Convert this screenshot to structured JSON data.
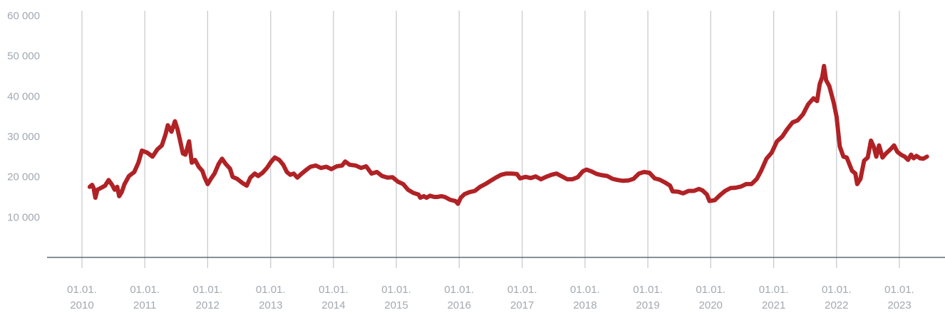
{
  "chart_data": {
    "type": "line",
    "title": "",
    "xlabel": "",
    "ylabel": "",
    "ylim": [
      0,
      60000
    ],
    "xlim": [
      "2009-12-01",
      "2023-08-01"
    ],
    "grid": "vertical",
    "legend": "none",
    "y_ticks": [
      {
        "value": 10000,
        "label": "10 000"
      },
      {
        "value": 20000,
        "label": "20 000"
      },
      {
        "value": 30000,
        "label": "30 000"
      },
      {
        "value": 40000,
        "label": "40 000"
      },
      {
        "value": 50000,
        "label": "50 000"
      },
      {
        "value": 60000,
        "label": "60 000"
      }
    ],
    "x_ticks": [
      {
        "date": "2010-01-01",
        "line1": "01.01.",
        "line2": "2010"
      },
      {
        "date": "2011-01-01",
        "line1": "01.01.",
        "line2": "2011"
      },
      {
        "date": "2012-01-01",
        "line1": "01.01.",
        "line2": "2012"
      },
      {
        "date": "2013-01-01",
        "line1": "01.01.",
        "line2": "2013"
      },
      {
        "date": "2014-01-01",
        "line1": "01.01.",
        "line2": "2014"
      },
      {
        "date": "2015-01-01",
        "line1": "01.01.",
        "line2": "2015"
      },
      {
        "date": "2016-01-01",
        "line1": "01.01.",
        "line2": "2016"
      },
      {
        "date": "2017-01-01",
        "line1": "01.01.",
        "line2": "2017"
      },
      {
        "date": "2018-01-01",
        "line1": "01.01.",
        "line2": "2018"
      },
      {
        "date": "2019-01-01",
        "line1": "01.01.",
        "line2": "2019"
      },
      {
        "date": "2020-01-01",
        "line1": "01.01.",
        "line2": "2020"
      },
      {
        "date": "2021-01-01",
        "line1": "01.01.",
        "line2": "2021"
      },
      {
        "date": "2022-01-01",
        "line1": "01.01.",
        "line2": "2022"
      },
      {
        "date": "2023-01-01",
        "line1": "01.01.",
        "line2": "2023"
      }
    ],
    "colors": {
      "line": "#b02225",
      "grid": "#c4c8cc",
      "axis": "#5f6b75",
      "ticks": "#a2a9b0"
    },
    "series": [
      {
        "color": "#b02225",
        "points": [
          [
            "2010-02-15",
            17500
          ],
          [
            "2010-03-01",
            18000
          ],
          [
            "2010-03-10",
            17200
          ],
          [
            "2010-03-20",
            14800
          ],
          [
            "2010-04-01",
            16800
          ],
          [
            "2010-04-20",
            17200
          ],
          [
            "2010-05-15",
            17800
          ],
          [
            "2010-06-05",
            19200
          ],
          [
            "2010-06-25",
            18000
          ],
          [
            "2010-07-10",
            16800
          ],
          [
            "2010-07-25",
            17500
          ],
          [
            "2010-08-05",
            15200
          ],
          [
            "2010-08-20",
            16200
          ],
          [
            "2010-09-05",
            18200
          ],
          [
            "2010-10-01",
            20200
          ],
          [
            "2010-11-01",
            21200
          ],
          [
            "2010-11-25",
            23500
          ],
          [
            "2010-12-15",
            26500
          ],
          [
            "2011-01-15",
            26000
          ],
          [
            "2011-02-15",
            25000
          ],
          [
            "2011-03-15",
            26800
          ],
          [
            "2011-04-10",
            27800
          ],
          [
            "2011-05-01",
            30500
          ],
          [
            "2011-05-15",
            32800
          ],
          [
            "2011-06-05",
            31200
          ],
          [
            "2011-06-25",
            33800
          ],
          [
            "2011-07-10",
            31800
          ],
          [
            "2011-07-25",
            29000
          ],
          [
            "2011-08-10",
            25800
          ],
          [
            "2011-08-25",
            25500
          ],
          [
            "2011-09-15",
            28800
          ],
          [
            "2011-10-01",
            23500
          ],
          [
            "2011-10-20",
            24200
          ],
          [
            "2011-11-10",
            22500
          ],
          [
            "2011-12-01",
            21500
          ],
          [
            "2011-12-15",
            19800
          ],
          [
            "2012-01-01",
            18200
          ],
          [
            "2012-01-20",
            19500
          ],
          [
            "2012-02-10",
            20800
          ],
          [
            "2012-03-05",
            23200
          ],
          [
            "2012-03-25",
            24500
          ],
          [
            "2012-04-15",
            23200
          ],
          [
            "2012-05-10",
            22000
          ],
          [
            "2012-05-25",
            20000
          ],
          [
            "2012-06-20",
            19500
          ],
          [
            "2012-07-20",
            18500
          ],
          [
            "2012-08-15",
            17800
          ],
          [
            "2012-09-05",
            19800
          ],
          [
            "2012-10-01",
            20800
          ],
          [
            "2012-10-20",
            20200
          ],
          [
            "2012-11-15",
            21000
          ],
          [
            "2012-12-10",
            22200
          ],
          [
            "2013-01-05",
            23800
          ],
          [
            "2013-01-25",
            24800
          ],
          [
            "2013-02-20",
            24200
          ],
          [
            "2013-03-15",
            23000
          ],
          [
            "2013-04-05",
            21200
          ],
          [
            "2013-04-25",
            20500
          ],
          [
            "2013-05-15",
            20800
          ],
          [
            "2013-06-05",
            19800
          ],
          [
            "2013-06-25",
            20600
          ],
          [
            "2013-07-20",
            21500
          ],
          [
            "2013-08-20",
            22500
          ],
          [
            "2013-09-20",
            22800
          ],
          [
            "2013-10-20",
            22200
          ],
          [
            "2013-11-20",
            22500
          ],
          [
            "2013-12-20",
            21900
          ],
          [
            "2014-01-20",
            22600
          ],
          [
            "2014-02-20",
            22800
          ],
          [
            "2014-03-10",
            23800
          ],
          [
            "2014-04-05",
            23000
          ],
          [
            "2014-05-10",
            22800
          ],
          [
            "2014-06-10",
            22200
          ],
          [
            "2014-07-10",
            22600
          ],
          [
            "2014-08-10",
            20800
          ],
          [
            "2014-09-10",
            21200
          ],
          [
            "2014-10-10",
            20200
          ],
          [
            "2014-11-10",
            19800
          ],
          [
            "2014-12-10",
            19900
          ],
          [
            "2015-01-10",
            18800
          ],
          [
            "2015-02-10",
            18200
          ],
          [
            "2015-03-10",
            16800
          ],
          [
            "2015-04-10",
            16000
          ],
          [
            "2015-05-10",
            15600
          ],
          [
            "2015-05-20",
            14800
          ],
          [
            "2015-06-10",
            15200
          ],
          [
            "2015-06-25",
            14800
          ],
          [
            "2015-07-15",
            15300
          ],
          [
            "2015-08-10",
            15000
          ],
          [
            "2015-08-25",
            15000
          ],
          [
            "2015-09-20",
            15200
          ],
          [
            "2015-10-10",
            15000
          ],
          [
            "2015-11-10",
            14300
          ],
          [
            "2015-12-10",
            14000
          ],
          [
            "2015-12-25",
            13300
          ],
          [
            "2016-01-10",
            14800
          ],
          [
            "2016-02-01",
            15700
          ],
          [
            "2016-03-01",
            16200
          ],
          [
            "2016-04-01",
            16500
          ],
          [
            "2016-05-01",
            17500
          ],
          [
            "2016-06-01",
            18200
          ],
          [
            "2016-07-01",
            19000
          ],
          [
            "2016-08-01",
            19800
          ],
          [
            "2016-09-01",
            20500
          ],
          [
            "2016-10-01",
            20800
          ],
          [
            "2016-11-01",
            20800
          ],
          [
            "2016-12-01",
            20700
          ],
          [
            "2016-12-20",
            19600
          ],
          [
            "2017-01-20",
            20000
          ],
          [
            "2017-02-20",
            19700
          ],
          [
            "2017-03-20",
            20100
          ],
          [
            "2017-04-20",
            19400
          ],
          [
            "2017-05-20",
            20000
          ],
          [
            "2017-06-20",
            20500
          ],
          [
            "2017-07-20",
            20800
          ],
          [
            "2017-08-20",
            20100
          ],
          [
            "2017-09-20",
            19400
          ],
          [
            "2017-10-20",
            19400
          ],
          [
            "2017-11-20",
            19900
          ],
          [
            "2017-12-20",
            21400
          ],
          [
            "2018-01-10",
            21800
          ],
          [
            "2018-02-10",
            21300
          ],
          [
            "2018-03-10",
            20700
          ],
          [
            "2018-04-10",
            20400
          ],
          [
            "2018-05-10",
            20200
          ],
          [
            "2018-06-10",
            19500
          ],
          [
            "2018-07-10",
            19200
          ],
          [
            "2018-08-10",
            19000
          ],
          [
            "2018-09-10",
            19100
          ],
          [
            "2018-10-10",
            19500
          ],
          [
            "2018-11-10",
            20800
          ],
          [
            "2018-12-10",
            21200
          ],
          [
            "2019-01-10",
            21000
          ],
          [
            "2019-02-10",
            19600
          ],
          [
            "2019-03-10",
            19300
          ],
          [
            "2019-04-10",
            18600
          ],
          [
            "2019-05-10",
            17800
          ],
          [
            "2019-05-25",
            16400
          ],
          [
            "2019-06-25",
            16300
          ],
          [
            "2019-07-25",
            15900
          ],
          [
            "2019-08-25",
            16500
          ],
          [
            "2019-09-25",
            16500
          ],
          [
            "2019-10-25",
            17000
          ],
          [
            "2019-11-15",
            16600
          ],
          [
            "2019-12-10",
            15600
          ],
          [
            "2019-12-25",
            14000
          ],
          [
            "2020-01-25",
            14200
          ],
          [
            "2020-02-25",
            15500
          ],
          [
            "2020-03-25",
            16500
          ],
          [
            "2020-04-25",
            17200
          ],
          [
            "2020-05-25",
            17300
          ],
          [
            "2020-06-25",
            17600
          ],
          [
            "2020-07-25",
            18200
          ],
          [
            "2020-08-25",
            18200
          ],
          [
            "2020-09-25",
            19500
          ],
          [
            "2020-10-20",
            21500
          ],
          [
            "2020-11-20",
            24500
          ],
          [
            "2020-12-20",
            26000
          ],
          [
            "2021-01-20",
            28800
          ],
          [
            "2021-02-20",
            30000
          ],
          [
            "2021-03-20",
            31800
          ],
          [
            "2021-04-20",
            33500
          ],
          [
            "2021-05-20",
            34000
          ],
          [
            "2021-06-20",
            35500
          ],
          [
            "2021-07-20",
            38000
          ],
          [
            "2021-08-20",
            39500
          ],
          [
            "2021-09-10",
            38800
          ],
          [
            "2021-09-25",
            43000
          ],
          [
            "2021-10-10",
            44800
          ],
          [
            "2021-10-20",
            47500
          ],
          [
            "2021-11-01",
            44000
          ],
          [
            "2021-11-20",
            42500
          ],
          [
            "2021-12-15",
            38500
          ],
          [
            "2022-01-01",
            35000
          ],
          [
            "2022-01-20",
            27500
          ],
          [
            "2022-02-10",
            25000
          ],
          [
            "2022-03-01",
            24800
          ],
          [
            "2022-04-01",
            21500
          ],
          [
            "2022-04-20",
            20800
          ],
          [
            "2022-05-01",
            18200
          ],
          [
            "2022-05-20",
            19500
          ],
          [
            "2022-06-10",
            24000
          ],
          [
            "2022-07-01",
            24800
          ],
          [
            "2022-07-20",
            29000
          ],
          [
            "2022-08-05",
            27500
          ],
          [
            "2022-08-20",
            25000
          ],
          [
            "2022-09-05",
            27800
          ],
          [
            "2022-09-25",
            24800
          ],
          [
            "2022-10-15",
            25800
          ],
          [
            "2022-11-10",
            26800
          ],
          [
            "2022-12-01",
            27800
          ],
          [
            "2022-12-20",
            26200
          ],
          [
            "2023-01-10",
            25500
          ],
          [
            "2023-02-01",
            25000
          ],
          [
            "2023-02-20",
            24200
          ],
          [
            "2023-03-10",
            25500
          ],
          [
            "2023-03-25",
            24600
          ],
          [
            "2023-04-10",
            25200
          ],
          [
            "2023-05-01",
            24600
          ],
          [
            "2023-05-20",
            24500
          ],
          [
            "2023-06-10",
            25000
          ]
        ]
      }
    ]
  }
}
